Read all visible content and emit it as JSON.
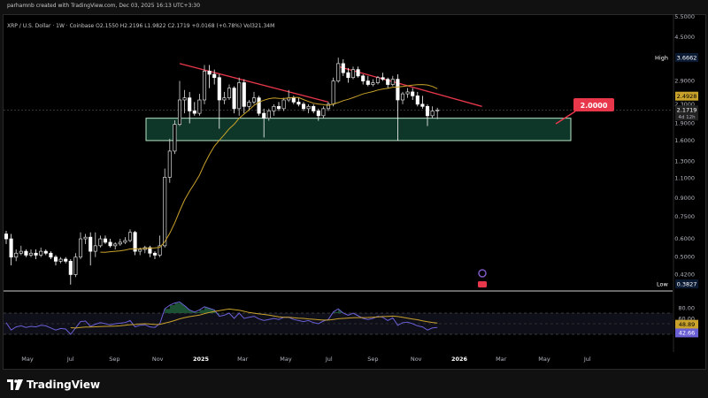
{
  "header": {
    "attribution": "parhamnb created with TradingView.com, Dec 03, 2025 16:13 UTC+3:30",
    "symbol_line": "XRP / U.S. Dollar · 1W · Coinbase  O2.1550  H2.2196  L1.9822  C2.1719  +0.0168 (+0.78%)  Vol321.34M"
  },
  "footer": {
    "brand": "TradingView"
  },
  "colors": {
    "up": "#d9d9d9",
    "down": "#ffffff",
    "ma": "#c9a22b",
    "trend": "#e8374b",
    "zone_fill": "#0f3d2e",
    "zone_border": "#b8e6c9",
    "rsi_line": "#6b5fd6",
    "rsi_ma": "#c9a22b",
    "rsi_fill": "#1f5a3a"
  },
  "chart_data": {
    "type": "candlestick",
    "title": "XRP / U.S. Dollar · 1W · Coinbase",
    "price_axis": {
      "scale": "log",
      "ticks": [
        "5.5000",
        "4.5000",
        "3.6662",
        "2.9000",
        "2.4928",
        "2.3000",
        "2.1719",
        "1.9000",
        "1.6000",
        "1.3000",
        "1.1000",
        "0.9000",
        "0.7500",
        "0.6000",
        "0.5000",
        "0.4200",
        "0.3827"
      ]
    },
    "time_axis": {
      "ticks": [
        "May",
        "Jul",
        "Sep",
        "Nov",
        "2025",
        "Mar",
        "May",
        "Jul",
        "Sep",
        "Nov",
        "2026",
        "Mar",
        "May",
        "Jul"
      ]
    },
    "labels": {
      "high_label": "High",
      "high_value": "3.6662",
      "low_label": "Low",
      "low_value": "0.3827",
      "ma_value": "2.4928",
      "last_price": "2.1719",
      "countdown": "4d 12h",
      "zone_target": "2.0000"
    },
    "support_zone": {
      "low": 1.6,
      "high": 2.0
    },
    "trendlines": [
      {
        "from": [
          "2024-12-02",
          3.45
        ],
        "to": [
          "2025-06-30",
          2.35
        ]
      },
      {
        "from": [
          "2025-07-14",
          3.35
        ],
        "to": [
          "2026-02-02",
          2.25
        ]
      }
    ],
    "candles": [
      {
        "t": "2024-04-01",
        "o": 0.63,
        "h": 0.65,
        "l": 0.57,
        "c": 0.6
      },
      {
        "t": "2024-04-08",
        "o": 0.6,
        "h": 0.63,
        "l": 0.46,
        "c": 0.5
      },
      {
        "t": "2024-04-15",
        "o": 0.5,
        "h": 0.54,
        "l": 0.48,
        "c": 0.52
      },
      {
        "t": "2024-04-22",
        "o": 0.52,
        "h": 0.56,
        "l": 0.51,
        "c": 0.53
      },
      {
        "t": "2024-04-29",
        "o": 0.53,
        "h": 0.54,
        "l": 0.5,
        "c": 0.51
      },
      {
        "t": "2024-05-06",
        "o": 0.51,
        "h": 0.54,
        "l": 0.5,
        "c": 0.52
      },
      {
        "t": "2024-05-13",
        "o": 0.52,
        "h": 0.54,
        "l": 0.49,
        "c": 0.51
      },
      {
        "t": "2024-05-20",
        "o": 0.51,
        "h": 0.55,
        "l": 0.5,
        "c": 0.53
      },
      {
        "t": "2024-05-27",
        "o": 0.53,
        "h": 0.54,
        "l": 0.51,
        "c": 0.52
      },
      {
        "t": "2024-06-03",
        "o": 0.52,
        "h": 0.53,
        "l": 0.49,
        "c": 0.5
      },
      {
        "t": "2024-06-10",
        "o": 0.5,
        "h": 0.51,
        "l": 0.46,
        "c": 0.48
      },
      {
        "t": "2024-06-17",
        "o": 0.48,
        "h": 0.5,
        "l": 0.47,
        "c": 0.49
      },
      {
        "t": "2024-06-24",
        "o": 0.49,
        "h": 0.5,
        "l": 0.47,
        "c": 0.48
      },
      {
        "t": "2024-07-01",
        "o": 0.48,
        "h": 0.49,
        "l": 0.38,
        "c": 0.42
      },
      {
        "t": "2024-07-08",
        "o": 0.42,
        "h": 0.52,
        "l": 0.41,
        "c": 0.5
      },
      {
        "t": "2024-07-15",
        "o": 0.5,
        "h": 0.64,
        "l": 0.49,
        "c": 0.6
      },
      {
        "t": "2024-07-22",
        "o": 0.6,
        "h": 0.63,
        "l": 0.57,
        "c": 0.61
      },
      {
        "t": "2024-07-29",
        "o": 0.61,
        "h": 0.64,
        "l": 0.46,
        "c": 0.53
      },
      {
        "t": "2024-08-05",
        "o": 0.53,
        "h": 0.64,
        "l": 0.5,
        "c": 0.56
      },
      {
        "t": "2024-08-12",
        "o": 0.56,
        "h": 0.62,
        "l": 0.55,
        "c": 0.6
      },
      {
        "t": "2024-08-19",
        "o": 0.6,
        "h": 0.62,
        "l": 0.57,
        "c": 0.58
      },
      {
        "t": "2024-08-26",
        "o": 0.58,
        "h": 0.6,
        "l": 0.55,
        "c": 0.56
      },
      {
        "t": "2024-09-02",
        "o": 0.56,
        "h": 0.58,
        "l": 0.54,
        "c": 0.57
      },
      {
        "t": "2024-09-09",
        "o": 0.57,
        "h": 0.6,
        "l": 0.56,
        "c": 0.58
      },
      {
        "t": "2024-09-16",
        "o": 0.58,
        "h": 0.61,
        "l": 0.57,
        "c": 0.59
      },
      {
        "t": "2024-09-23",
        "o": 0.59,
        "h": 0.66,
        "l": 0.58,
        "c": 0.64
      },
      {
        "t": "2024-09-30",
        "o": 0.64,
        "h": 0.65,
        "l": 0.51,
        "c": 0.53
      },
      {
        "t": "2024-10-07",
        "o": 0.53,
        "h": 0.55,
        "l": 0.51,
        "c": 0.54
      },
      {
        "t": "2024-10-14",
        "o": 0.54,
        "h": 0.56,
        "l": 0.52,
        "c": 0.55
      },
      {
        "t": "2024-10-21",
        "o": 0.55,
        "h": 0.56,
        "l": 0.5,
        "c": 0.52
      },
      {
        "t": "2024-10-28",
        "o": 0.52,
        "h": 0.53,
        "l": 0.49,
        "c": 0.51
      },
      {
        "t": "2024-11-04",
        "o": 0.51,
        "h": 0.62,
        "l": 0.5,
        "c": 0.56
      },
      {
        "t": "2024-11-11",
        "o": 0.56,
        "h": 1.21,
        "l": 0.55,
        "c": 1.11
      },
      {
        "t": "2024-11-18",
        "o": 1.11,
        "h": 1.63,
        "l": 1.05,
        "c": 1.44
      },
      {
        "t": "2024-11-25",
        "o": 1.44,
        "h": 1.96,
        "l": 1.4,
        "c": 1.88
      },
      {
        "t": "2024-12-02",
        "o": 1.88,
        "h": 2.9,
        "l": 1.85,
        "c": 2.4
      },
      {
        "t": "2024-12-09",
        "o": 2.4,
        "h": 2.65,
        "l": 2.1,
        "c": 2.45
      },
      {
        "t": "2024-12-16",
        "o": 2.45,
        "h": 2.6,
        "l": 1.9,
        "c": 2.15
      },
      {
        "t": "2024-12-23",
        "o": 2.15,
        "h": 2.35,
        "l": 2.05,
        "c": 2.1
      },
      {
        "t": "2024-12-30",
        "o": 2.1,
        "h": 2.55,
        "l": 2.05,
        "c": 2.4
      },
      {
        "t": "2025-01-06",
        "o": 2.4,
        "h": 3.4,
        "l": 2.3,
        "c": 3.2
      },
      {
        "t": "2025-01-13",
        "o": 3.2,
        "h": 3.4,
        "l": 2.7,
        "c": 3.1
      },
      {
        "t": "2025-01-20",
        "o": 3.1,
        "h": 3.25,
        "l": 2.8,
        "c": 3.0
      },
      {
        "t": "2025-01-27",
        "o": 3.0,
        "h": 3.1,
        "l": 1.8,
        "c": 2.4
      },
      {
        "t": "2025-02-03",
        "o": 2.4,
        "h": 2.6,
        "l": 2.3,
        "c": 2.45
      },
      {
        "t": "2025-02-10",
        "o": 2.45,
        "h": 2.8,
        "l": 2.4,
        "c": 2.7
      },
      {
        "t": "2025-02-17",
        "o": 2.7,
        "h": 2.75,
        "l": 2.1,
        "c": 2.2
      },
      {
        "t": "2025-02-24",
        "o": 2.2,
        "h": 3.0,
        "l": 2.05,
        "c": 2.85
      },
      {
        "t": "2025-03-03",
        "o": 2.85,
        "h": 2.95,
        "l": 2.1,
        "c": 2.25
      },
      {
        "t": "2025-03-10",
        "o": 2.25,
        "h": 2.4,
        "l": 2.15,
        "c": 2.35
      },
      {
        "t": "2025-03-17",
        "o": 2.35,
        "h": 2.6,
        "l": 2.3,
        "c": 2.45
      },
      {
        "t": "2025-03-24",
        "o": 2.45,
        "h": 2.5,
        "l": 2.05,
        "c": 2.1
      },
      {
        "t": "2025-03-31",
        "o": 2.1,
        "h": 2.2,
        "l": 1.65,
        "c": 2.0
      },
      {
        "t": "2025-04-07",
        "o": 2.0,
        "h": 2.2,
        "l": 1.95,
        "c": 2.15
      },
      {
        "t": "2025-04-14",
        "o": 2.15,
        "h": 2.3,
        "l": 2.05,
        "c": 2.25
      },
      {
        "t": "2025-04-21",
        "o": 2.25,
        "h": 2.35,
        "l": 2.15,
        "c": 2.2
      },
      {
        "t": "2025-04-28",
        "o": 2.2,
        "h": 2.45,
        "l": 2.15,
        "c": 2.4
      },
      {
        "t": "2025-05-05",
        "o": 2.4,
        "h": 2.65,
        "l": 2.35,
        "c": 2.45
      },
      {
        "t": "2025-05-12",
        "o": 2.45,
        "h": 2.5,
        "l": 2.3,
        "c": 2.35
      },
      {
        "t": "2025-05-19",
        "o": 2.35,
        "h": 2.45,
        "l": 2.25,
        "c": 2.3
      },
      {
        "t": "2025-05-26",
        "o": 2.3,
        "h": 2.35,
        "l": 2.15,
        "c": 2.2
      },
      {
        "t": "2025-06-02",
        "o": 2.2,
        "h": 2.3,
        "l": 2.1,
        "c": 2.25
      },
      {
        "t": "2025-06-09",
        "o": 2.25,
        "h": 2.3,
        "l": 2.1,
        "c": 2.15
      },
      {
        "t": "2025-06-16",
        "o": 2.15,
        "h": 2.2,
        "l": 1.95,
        "c": 2.05
      },
      {
        "t": "2025-06-23",
        "o": 2.05,
        "h": 2.25,
        "l": 2.0,
        "c": 2.2
      },
      {
        "t": "2025-06-30",
        "o": 2.2,
        "h": 2.35,
        "l": 2.15,
        "c": 2.3
      },
      {
        "t": "2025-07-07",
        "o": 2.3,
        "h": 3.0,
        "l": 2.25,
        "c": 2.9
      },
      {
        "t": "2025-07-14",
        "o": 2.9,
        "h": 3.66,
        "l": 2.85,
        "c": 3.45
      },
      {
        "t": "2025-07-21",
        "o": 3.45,
        "h": 3.6,
        "l": 3.05,
        "c": 3.15
      },
      {
        "t": "2025-07-28",
        "o": 3.15,
        "h": 3.3,
        "l": 2.85,
        "c": 3.0
      },
      {
        "t": "2025-08-04",
        "o": 3.0,
        "h": 3.35,
        "l": 2.95,
        "c": 3.25
      },
      {
        "t": "2025-08-11",
        "o": 3.25,
        "h": 3.35,
        "l": 3.0,
        "c": 3.05
      },
      {
        "t": "2025-08-18",
        "o": 3.05,
        "h": 3.1,
        "l": 2.8,
        "c": 2.9
      },
      {
        "t": "2025-08-25",
        "o": 2.9,
        "h": 3.05,
        "l": 2.75,
        "c": 2.8
      },
      {
        "t": "2025-09-01",
        "o": 2.8,
        "h": 2.95,
        "l": 2.75,
        "c": 2.85
      },
      {
        "t": "2025-09-08",
        "o": 2.85,
        "h": 3.05,
        "l": 2.8,
        "c": 3.0
      },
      {
        "t": "2025-09-15",
        "o": 3.0,
        "h": 3.15,
        "l": 2.9,
        "c": 2.95
      },
      {
        "t": "2025-09-22",
        "o": 2.95,
        "h": 3.0,
        "l": 2.7,
        "c": 2.8
      },
      {
        "t": "2025-09-29",
        "o": 2.8,
        "h": 3.05,
        "l": 2.75,
        "c": 2.95
      },
      {
        "t": "2025-10-06",
        "o": 2.95,
        "h": 3.1,
        "l": 1.6,
        "c": 2.4
      },
      {
        "t": "2025-10-13",
        "o": 2.4,
        "h": 2.6,
        "l": 2.3,
        "c": 2.55
      },
      {
        "t": "2025-10-20",
        "o": 2.55,
        "h": 2.7,
        "l": 2.45,
        "c": 2.6
      },
      {
        "t": "2025-10-27",
        "o": 2.6,
        "h": 2.7,
        "l": 2.4,
        "c": 2.5
      },
      {
        "t": "2025-11-03",
        "o": 2.5,
        "h": 2.6,
        "l": 2.25,
        "c": 2.3
      },
      {
        "t": "2025-11-10",
        "o": 2.3,
        "h": 2.5,
        "l": 2.2,
        "c": 2.25
      },
      {
        "t": "2025-11-17",
        "o": 2.25,
        "h": 2.3,
        "l": 1.85,
        "c": 2.05
      },
      {
        "t": "2025-11-24",
        "o": 2.05,
        "h": 2.25,
        "l": 2.0,
        "c": 2.15
      },
      {
        "t": "2025-12-01",
        "o": 2.155,
        "h": 2.2196,
        "l": 1.9822,
        "c": 2.1719
      }
    ],
    "rsi": {
      "axis_ticks": [
        "80.00",
        "60.00",
        "48.89",
        "42.66"
      ],
      "value": "42.66",
      "ma_value": "48.89",
      "levels": [
        70,
        30
      ],
      "ylim": [
        0,
        100
      ],
      "values": [
        52,
        38,
        44,
        46,
        43,
        45,
        44,
        47,
        46,
        42,
        38,
        41,
        40,
        30,
        42,
        54,
        55,
        45,
        49,
        52,
        50,
        48,
        50,
        51,
        52,
        56,
        44,
        47,
        48,
        44,
        43,
        50,
        78,
        85,
        89,
        91,
        84,
        76,
        72,
        76,
        82,
        79,
        76,
        64,
        66,
        70,
        60,
        70,
        60,
        62,
        64,
        59,
        56,
        58,
        60,
        58,
        62,
        62,
        58,
        56,
        54,
        56,
        52,
        50,
        55,
        58,
        72,
        78,
        70,
        66,
        70,
        65,
        60,
        58,
        60,
        64,
        62,
        56,
        61,
        47,
        52,
        53,
        50,
        46,
        44,
        38,
        42,
        43
      ]
    }
  }
}
